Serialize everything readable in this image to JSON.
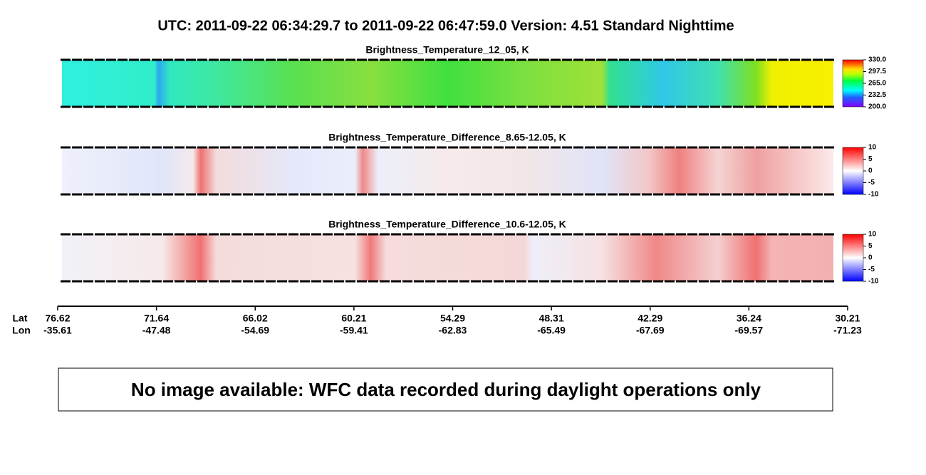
{
  "header": {
    "title": "UTC:  2011-09-22   06:34:29.7  to  2011-09-22   06:47:59.0    Version: 4.51  Standard Nighttime"
  },
  "panels": [
    {
      "title": "Brightness_Temperature_12_05, K",
      "colorbar_ticks": [
        "330.0",
        "297.5",
        "265.0",
        "232.5",
        "200.0"
      ]
    },
    {
      "title": "Brightness_Temperature_Difference_8.65-12.05, K",
      "colorbar_ticks": [
        "10",
        "5",
        "0",
        "-5",
        "-10"
      ]
    },
    {
      "title": "Brightness_Temperature_Difference_10.6-12.05, K",
      "colorbar_ticks": [
        "10",
        "5",
        "0",
        "-5",
        "-10"
      ]
    }
  ],
  "axis": {
    "lat_label": "Lat",
    "lon_label": "Lon",
    "lat": [
      "76.62",
      "71.64",
      "66.02",
      "60.21",
      "54.29",
      "48.31",
      "42.29",
      "36.24",
      "30.21"
    ],
    "lon": [
      "-35.61",
      "-47.48",
      "-54.69",
      "-59.41",
      "-62.83",
      "-65.49",
      "-67.69",
      "-69.57",
      "-71.23"
    ]
  },
  "message": "No image available: WFC data recorded during daylight operations only"
}
